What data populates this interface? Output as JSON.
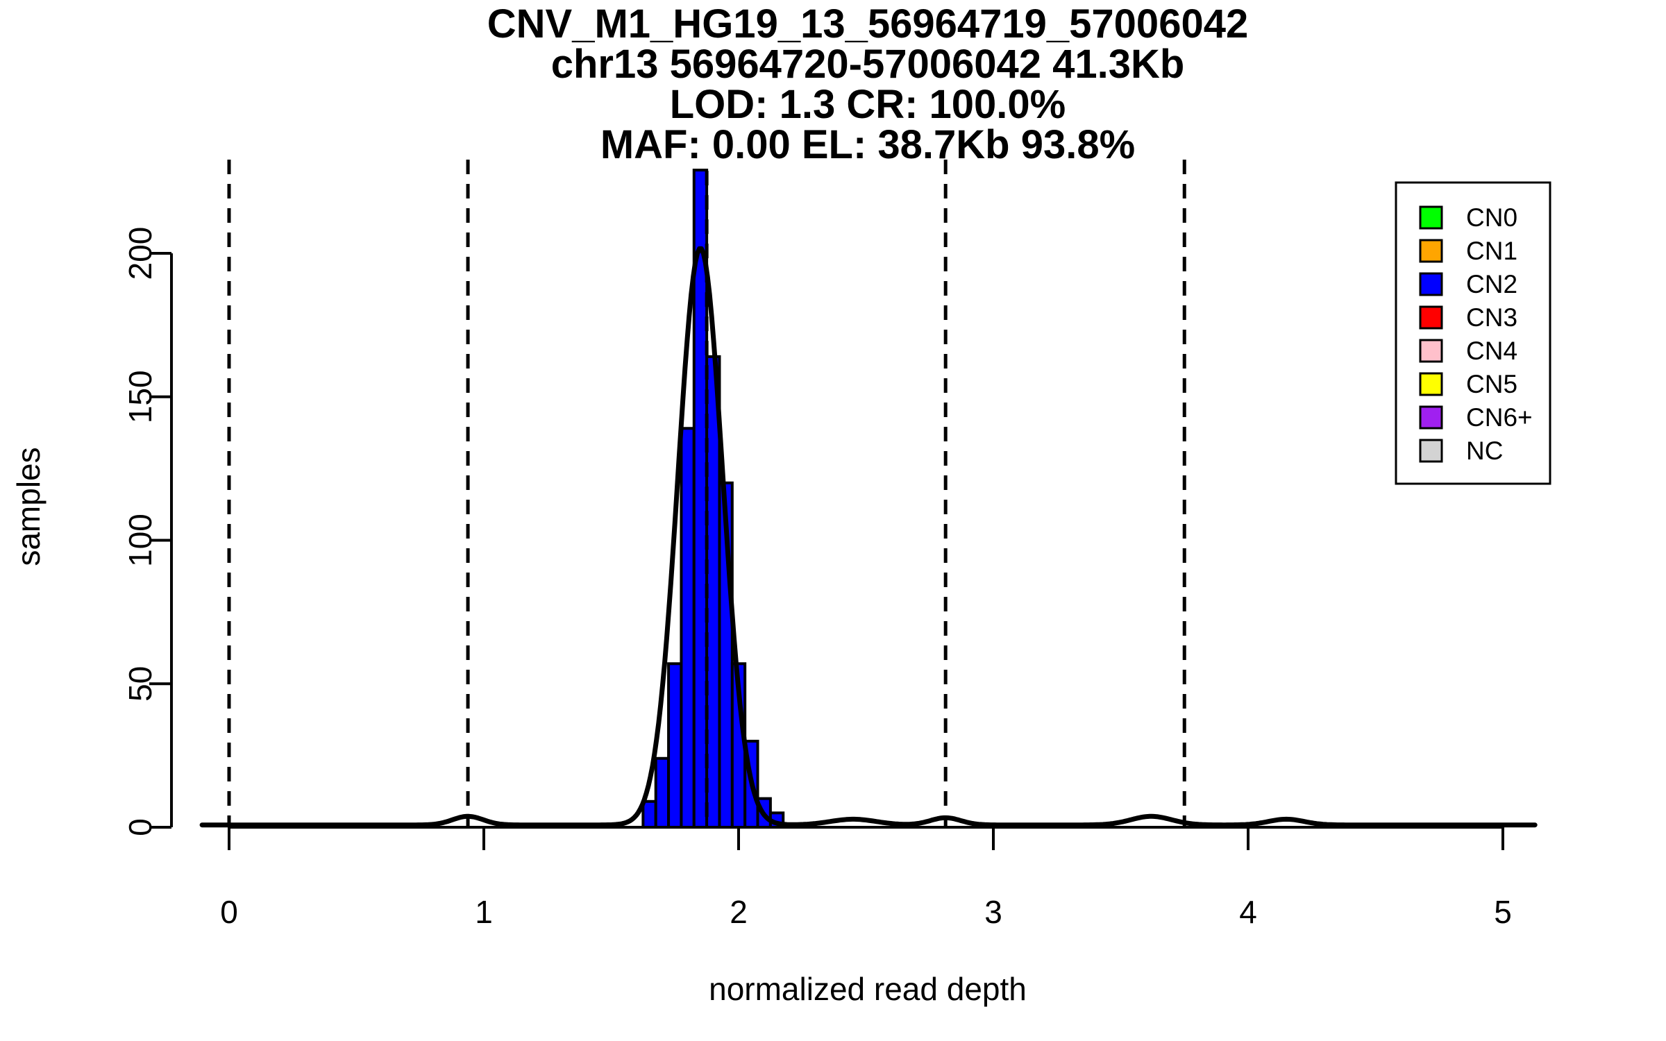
{
  "chart_data": {
    "type": "histogram",
    "title_lines": [
      "CNV_M1_HG19_13_56964719_57006042",
      "chr13 56964720-57006042 41.3Kb",
      "LOD: 1.3 CR: 100.0%",
      "MAF: 0.00 EL: 38.7Kb 93.8%"
    ],
    "xlabel": "normalized read depth",
    "ylabel": "samples",
    "x_ticks": [
      0,
      1,
      2,
      3,
      4,
      5
    ],
    "y_ticks": [
      0,
      50,
      100,
      150,
      200
    ],
    "xlim": [
      -0.11,
      5.13
    ],
    "ylim": [
      0,
      232
    ],
    "grid": false,
    "bin_width": 0.05,
    "bin_left_edges": [
      1.625,
      1.675,
      1.725,
      1.775,
      1.825,
      1.875,
      1.925,
      1.975,
      2.025,
      2.075,
      2.125
    ],
    "counts": [
      9,
      24,
      57,
      139,
      229,
      164,
      120,
      57,
      30,
      10,
      5
    ],
    "bar_fill_color": "#0000FF",
    "bar_border_color": "#000000",
    "dashed_line_x": [
      0,
      0.9375,
      1.875,
      2.8125,
      3.75
    ],
    "dashed_line_color": "#000000",
    "density_curve_color": "#000000",
    "density_baseline": 0.8,
    "density_components": [
      {
        "mu": 1.85,
        "sigma": 0.088,
        "peak": 201
      },
      {
        "mu": 0.9375,
        "sigma": 0.06,
        "peak": 3.0
      },
      {
        "mu": 2.45,
        "sigma": 0.09,
        "peak": 2.0
      },
      {
        "mu": 2.8125,
        "sigma": 0.06,
        "peak": 2.5
      },
      {
        "mu": 3.62,
        "sigma": 0.08,
        "peak": 3.0
      },
      {
        "mu": 4.15,
        "sigma": 0.07,
        "peak": 2.0
      }
    ],
    "legend": {
      "position": "top-right",
      "items": [
        {
          "label": "CN0",
          "color": "#00FF00"
        },
        {
          "label": "CN1",
          "color": "#FFA500"
        },
        {
          "label": "CN2",
          "color": "#0000FF"
        },
        {
          "label": "CN3",
          "color": "#FF0000"
        },
        {
          "label": "CN4",
          "color": "#FFC0CB"
        },
        {
          "label": "CN5",
          "color": "#FFFF00"
        },
        {
          "label": "CN6+",
          "color": "#A020F0"
        },
        {
          "label": "NC",
          "color": "#D3D3D3"
        }
      ]
    }
  }
}
